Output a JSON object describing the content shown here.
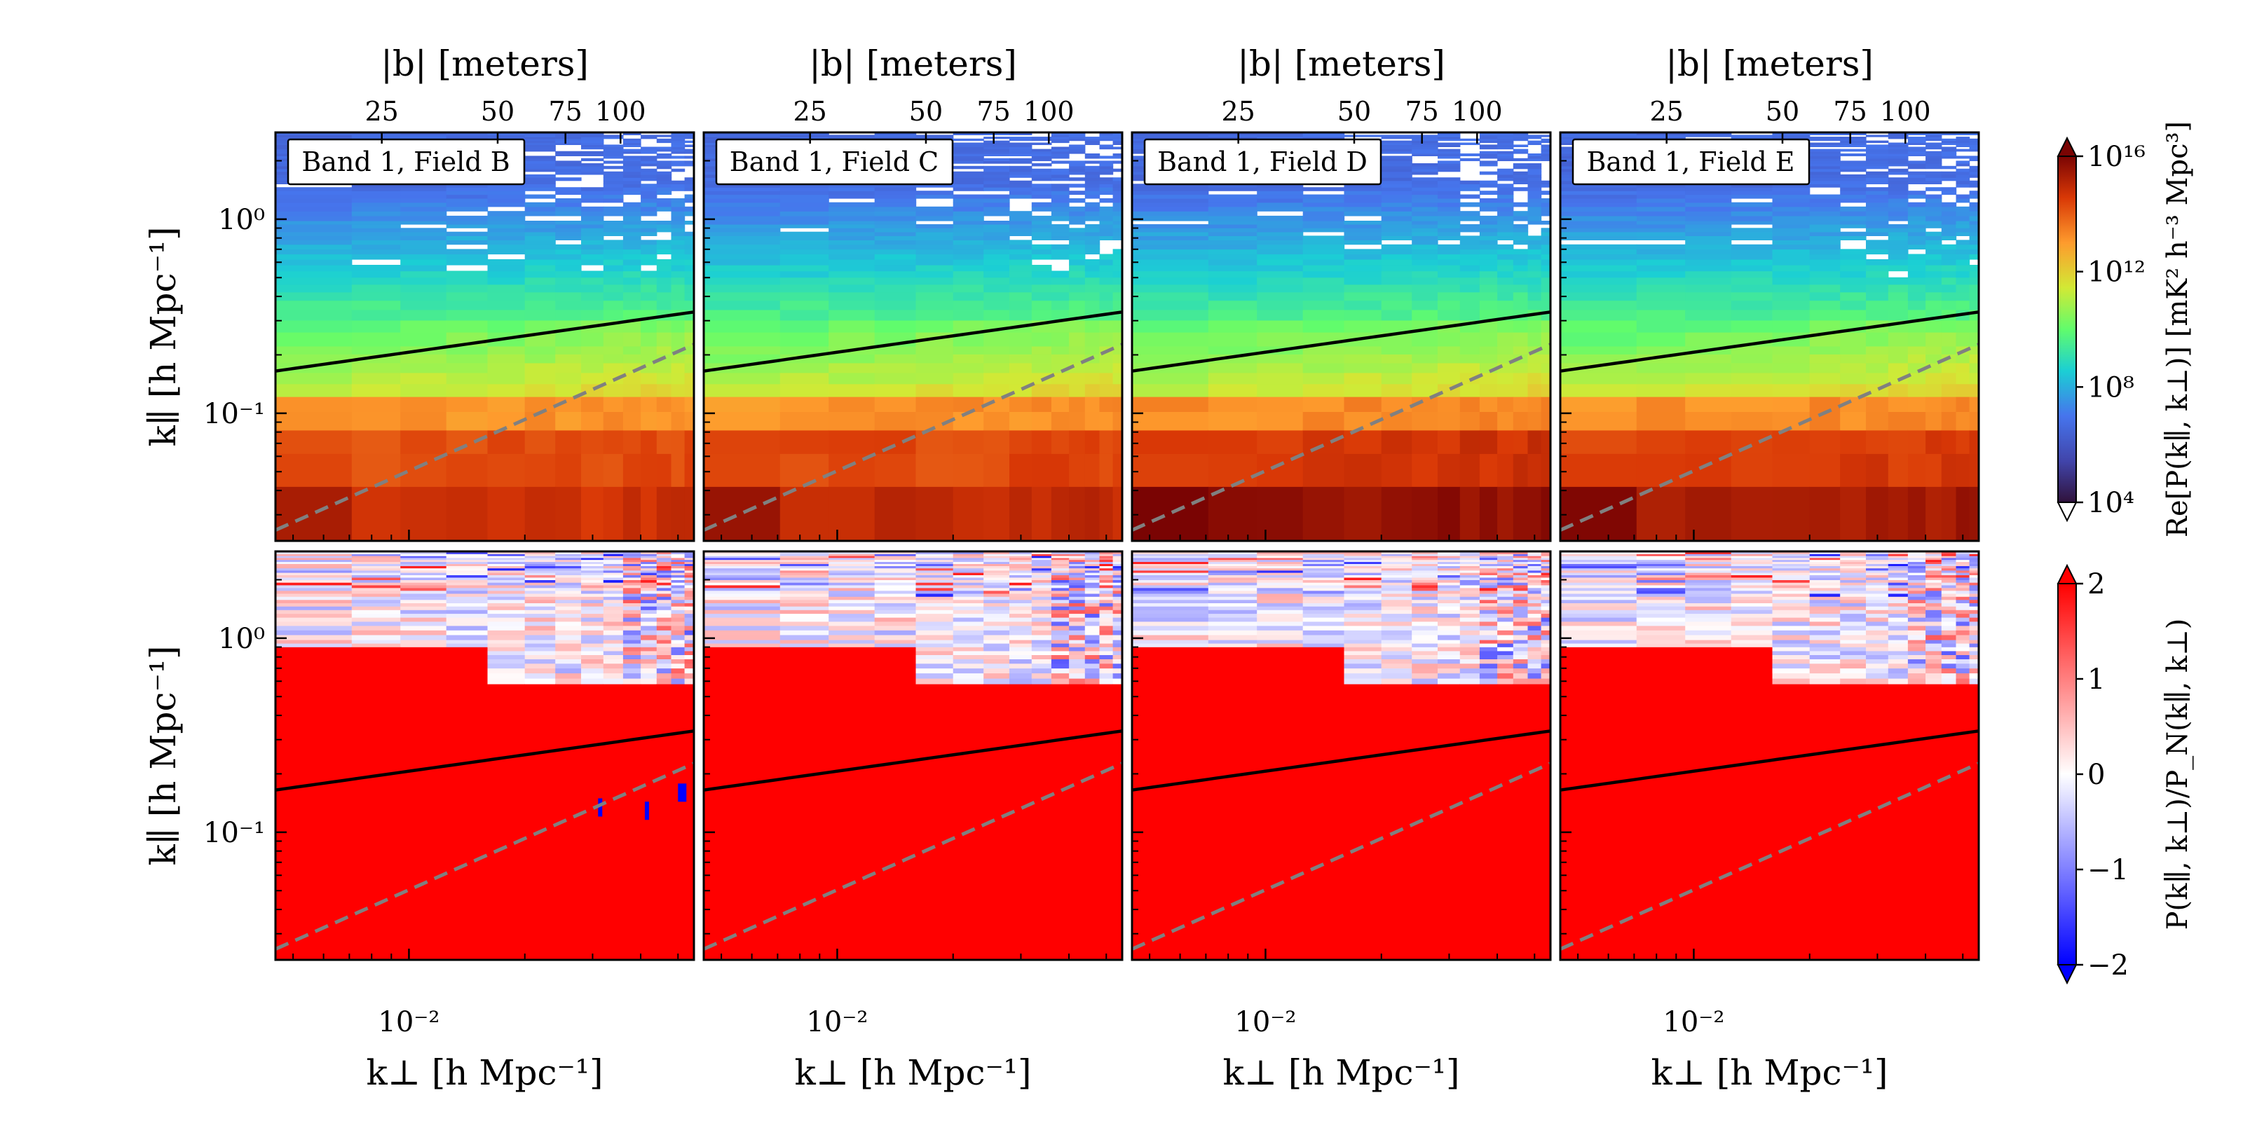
{
  "figure": {
    "top_axis_label": "|b| [meters]",
    "top_ticks": [
      "25",
      "50",
      "75",
      "100"
    ],
    "x_label": "k⊥ [h Mpc⁻¹]",
    "x_tick": "10⁻²",
    "y_label": "k∥ [h Mpc⁻¹]",
    "y_ticks": [
      "10⁰",
      "10⁻¹"
    ]
  },
  "panels": [
    {
      "title": "Band 1, Field B"
    },
    {
      "title": "Band 1, Field C"
    },
    {
      "title": "Band 1, Field D"
    },
    {
      "title": "Band 1, Field E"
    }
  ],
  "colorbars": {
    "top": {
      "label": "Re[P(k∥, k⊥)] [mK² h⁻³ Mpc³]",
      "ticks": [
        "10¹⁶",
        "10¹²",
        "10⁸",
        "10⁴"
      ],
      "colormap": "turbo",
      "scale": "log",
      "range": [
        10000,
        10000000000000000
      ]
    },
    "bottom": {
      "label": "P(k∥, k⊥)/P_N(k∥, k⊥)",
      "ticks": [
        "2",
        "1",
        "0",
        "−1",
        "−2"
      ],
      "colormap": "bwr",
      "range": [
        -2,
        2
      ]
    }
  },
  "colors": {
    "horizon_line": "#000000",
    "wedge_line": "#808080",
    "frame": "#000000"
  },
  "chart_data": [
    {
      "type": "heatmap",
      "title": "Band 1, Field B",
      "xlabel": "k⊥ [h Mpc⁻¹]",
      "ylabel": "k∥ [h Mpc⁻¹]",
      "xscale": "log",
      "yscale": "log",
      "xlim": [
        0.0045,
        0.055
      ],
      "ylim": [
        0.022,
        2.8
      ],
      "colorbar_label": "Re[P(k∥, k⊥)] [mK² h⁻³ Mpc³]",
      "value_range": [
        10000,
        10000000000000000
      ],
      "approx_log10_power_by_kpar": [
        {
          "kpar": 0.03,
          "log10P": 14.5
        },
        {
          "kpar": 0.06,
          "log10P": 14.0
        },
        {
          "kpar": 0.1,
          "log10P": 13.0
        },
        {
          "kpar": 0.15,
          "log10P": 10.8
        },
        {
          "kpar": 0.3,
          "log10P": 9.2
        },
        {
          "kpar": 1.0,
          "log10P": 7.5
        },
        {
          "kpar": 2.5,
          "log10P": 6.8
        }
      ],
      "lines": [
        {
          "style": "solid",
          "color": "black"
        },
        {
          "style": "dashed",
          "color": "gray"
        }
      ]
    },
    {
      "type": "heatmap",
      "title": "Band 1, Field C",
      "xlabel": "k⊥ [h Mpc⁻¹]",
      "ylabel": "k∥ [h Mpc⁻¹]",
      "xscale": "log",
      "yscale": "log",
      "xlim": [
        0.0045,
        0.055
      ],
      "ylim": [
        0.022,
        2.8
      ],
      "colorbar_label": "Re[P(k∥, k⊥)] [mK² h⁻³ Mpc³]",
      "value_range": [
        10000,
        10000000000000000
      ],
      "approx_log10_power_by_kpar": [
        {
          "kpar": 0.03,
          "log10P": 14.8
        },
        {
          "kpar": 0.06,
          "log10P": 14.2
        },
        {
          "kpar": 0.1,
          "log10P": 13.0
        },
        {
          "kpar": 0.15,
          "log10P": 10.8
        },
        {
          "kpar": 0.3,
          "log10P": 9.2
        },
        {
          "kpar": 1.0,
          "log10P": 7.5
        },
        {
          "kpar": 2.5,
          "log10P": 6.8
        }
      ],
      "lines": [
        {
          "style": "solid",
          "color": "black"
        },
        {
          "style": "dashed",
          "color": "gray"
        }
      ]
    },
    {
      "type": "heatmap",
      "title": "Band 1, Field D",
      "xlabel": "k⊥ [h Mpc⁻¹]",
      "ylabel": "k∥ [h Mpc⁻¹]",
      "xscale": "log",
      "yscale": "log",
      "xlim": [
        0.0045,
        0.055
      ],
      "ylim": [
        0.022,
        2.8
      ],
      "colorbar_label": "Re[P(k∥, k⊥)] [mK² h⁻³ Mpc³]",
      "value_range": [
        10000,
        10000000000000000
      ],
      "approx_log10_power_by_kpar": [
        {
          "kpar": 0.03,
          "log10P": 15.6
        },
        {
          "kpar": 0.06,
          "log10P": 14.6
        },
        {
          "kpar": 0.1,
          "log10P": 13.2
        },
        {
          "kpar": 0.15,
          "log10P": 10.8
        },
        {
          "kpar": 0.3,
          "log10P": 9.2
        },
        {
          "kpar": 1.0,
          "log10P": 7.5
        },
        {
          "kpar": 2.5,
          "log10P": 6.8
        }
      ],
      "lines": [
        {
          "style": "solid",
          "color": "black"
        },
        {
          "style": "dashed",
          "color": "gray"
        }
      ]
    },
    {
      "type": "heatmap",
      "title": "Band 1, Field E",
      "xlabel": "k⊥ [h Mpc⁻¹]",
      "ylabel": "k∥ [h Mpc⁻¹]",
      "xscale": "log",
      "yscale": "log",
      "xlim": [
        0.0045,
        0.055
      ],
      "ylim": [
        0.022,
        2.8
      ],
      "colorbar_label": "Re[P(k∥, k⊥)] [mK² h⁻³ Mpc³]",
      "value_range": [
        10000,
        10000000000000000
      ],
      "approx_log10_power_by_kpar": [
        {
          "kpar": 0.03,
          "log10P": 15.2
        },
        {
          "kpar": 0.06,
          "log10P": 14.4
        },
        {
          "kpar": 0.1,
          "log10P": 13.0
        },
        {
          "kpar": 0.15,
          "log10P": 10.8
        },
        {
          "kpar": 0.3,
          "log10P": 9.2
        },
        {
          "kpar": 1.0,
          "log10P": 7.5
        },
        {
          "kpar": 2.5,
          "log10P": 6.8
        }
      ],
      "lines": [
        {
          "style": "solid",
          "color": "black"
        },
        {
          "style": "dashed",
          "color": "gray"
        }
      ]
    },
    {
      "type": "heatmap",
      "title": "",
      "xlabel": "k⊥ [h Mpc⁻¹]",
      "ylabel": "k∥ [h Mpc⁻¹]",
      "xscale": "log",
      "yscale": "log",
      "colorbar_label": "P(k∥, k⊥)/P_N(k∥, k⊥)",
      "value_range": [
        -2,
        2
      ],
      "description_values": {
        "below_kpar_0.5": 2,
        "above_kpar_0.5": "noise, approximately -1 to 1"
      },
      "lines": [
        {
          "style": "solid",
          "color": "black"
        },
        {
          "style": "dashed",
          "color": "gray"
        }
      ]
    },
    {
      "type": "heatmap",
      "title": "",
      "xlabel": "k⊥ [h Mpc⁻¹]",
      "ylabel": "k∥ [h Mpc⁻¹]",
      "xscale": "log",
      "yscale": "log",
      "colorbar_label": "P(k∥, k⊥)/P_N(k∥, k⊥)",
      "value_range": [
        -2,
        2
      ],
      "lines": [
        {
          "style": "solid",
          "color": "black"
        },
        {
          "style": "dashed",
          "color": "gray"
        }
      ]
    },
    {
      "type": "heatmap",
      "title": "",
      "xlabel": "k⊥ [h Mpc⁻¹]",
      "ylabel": "k∥ [h Mpc⁻¹]",
      "xscale": "log",
      "yscale": "log",
      "colorbar_label": "P(k∥, k⊥)/P_N(k∥, k⊥)",
      "value_range": [
        -2,
        2
      ],
      "lines": [
        {
          "style": "solid",
          "color": "black"
        },
        {
          "style": "dashed",
          "color": "gray"
        }
      ]
    },
    {
      "type": "heatmap",
      "title": "",
      "xlabel": "k⊥ [h Mpc⁻¹]",
      "ylabel": "k∥ [h Mpc⁻¹]",
      "xscale": "log",
      "yscale": "log",
      "colorbar_label": "P(k∥, k⊥)/P_N(k∥, k⊥)",
      "value_range": [
        -2,
        2
      ],
      "lines": [
        {
          "style": "solid",
          "color": "black"
        },
        {
          "style": "dashed",
          "color": "gray"
        }
      ]
    }
  ]
}
